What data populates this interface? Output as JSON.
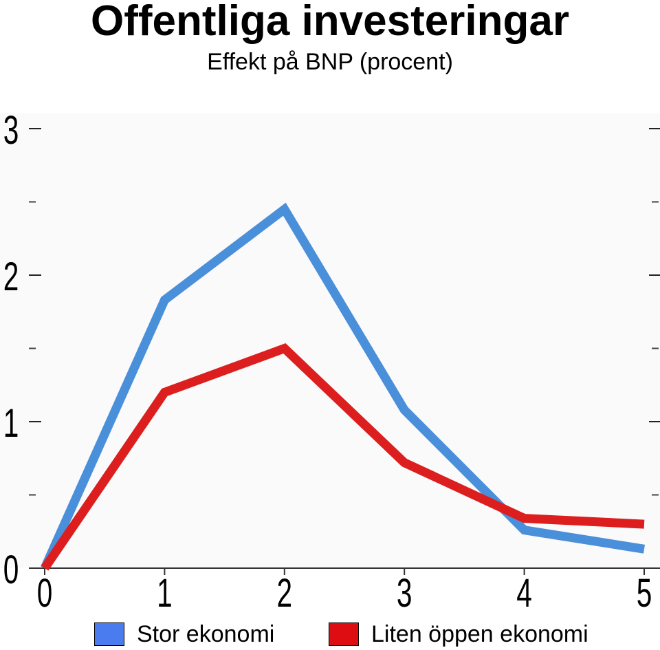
{
  "title": "Offentliga investeringar",
  "subtitle": "Effekt på BNP (procent)",
  "chart_data": {
    "type": "line",
    "x": [
      0,
      1,
      2,
      3,
      4,
      5
    ],
    "xlim": [
      0,
      5
    ],
    "ylim": [
      0,
      3
    ],
    "yticks": [
      0,
      1,
      2,
      3
    ],
    "yminor": [
      0.5,
      1.5,
      2.5
    ],
    "xlabel": "",
    "ylabel": "",
    "grid": false,
    "legend": "bottom",
    "series": [
      {
        "name": "Stor ekonomi",
        "color": "#4a8fd9",
        "values": [
          0,
          1.83,
          2.45,
          1.08,
          0.26,
          0.13
        ]
      },
      {
        "name": "Liten öppen ekonomi",
        "color": "#dc1e1e",
        "values": [
          0,
          1.2,
          1.5,
          0.72,
          0.34,
          0.3
        ]
      }
    ]
  }
}
